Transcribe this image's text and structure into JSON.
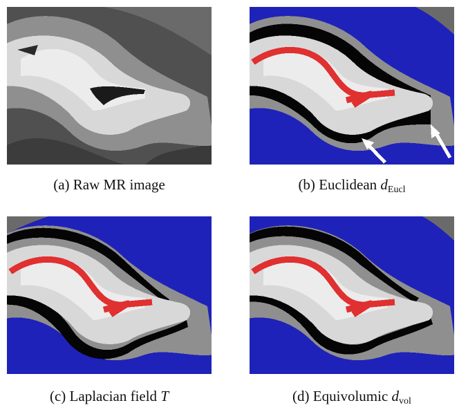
{
  "panels": [
    {
      "letter": "(a)",
      "text": "Raw MR image",
      "var": "",
      "sub": ""
    },
    {
      "letter": "(b)",
      "text": "Euclidean ",
      "var": "d",
      "sub": "Eucl"
    },
    {
      "letter": "(c)",
      "text": "Laplacian field ",
      "var": "T",
      "sub": ""
    },
    {
      "letter": "(d)",
      "text": "Equivolumic ",
      "var": "d",
      "sub": "vol"
    }
  ],
  "colors": {
    "background_mask": "#1f22b8",
    "midline": "#e03030",
    "boundary": "#050505",
    "arrow": "#ffffff"
  }
}
